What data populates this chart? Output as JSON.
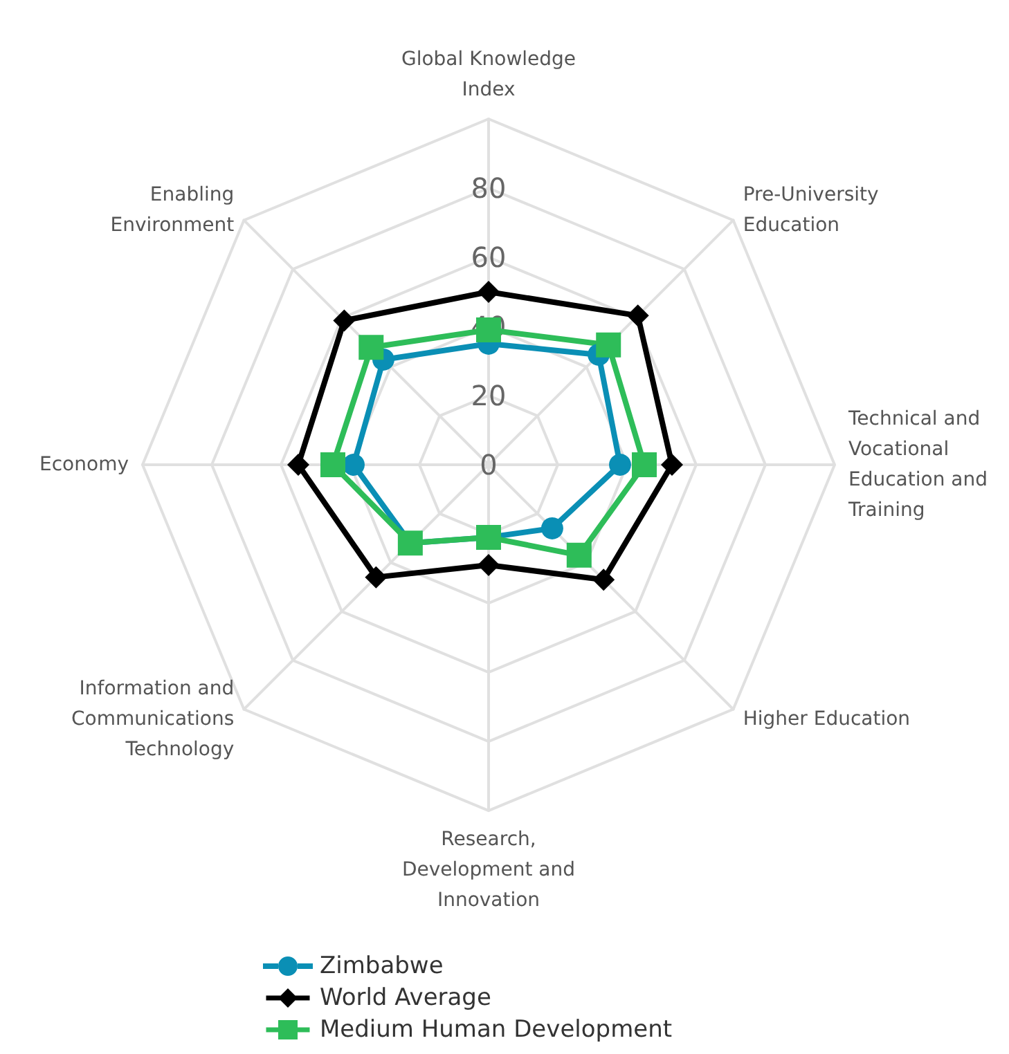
{
  "chart_data": {
    "type": "radar",
    "categories": [
      "Global Knowledge Index",
      "Pre-University Education",
      "Technical and Vocational Education and Training",
      "Higher Education",
      "Research, Development and Innovation",
      "Information and Communications Technology",
      "Economy",
      "Enabling Environment"
    ],
    "series": [
      {
        "name": "Zimbabwe",
        "color": "#0a8fb5",
        "marker": "circle",
        "values": [
          35,
          45,
          38,
          26,
          21,
          32,
          39,
          43
        ]
      },
      {
        "name": "World Average",
        "color": "#000000",
        "marker": "diamond",
        "values": [
          50,
          61,
          53,
          47,
          29,
          46,
          55,
          59
        ]
      },
      {
        "name": "Medium Human Development",
        "color": "#2ebd59",
        "marker": "square",
        "values": [
          39,
          49,
          45,
          37,
          21,
          32,
          45,
          48
        ]
      }
    ],
    "ylim": [
      0,
      100
    ],
    "yticks": [
      0,
      20,
      40,
      60,
      80
    ],
    "legend": "bottom",
    "grid": true
  }
}
